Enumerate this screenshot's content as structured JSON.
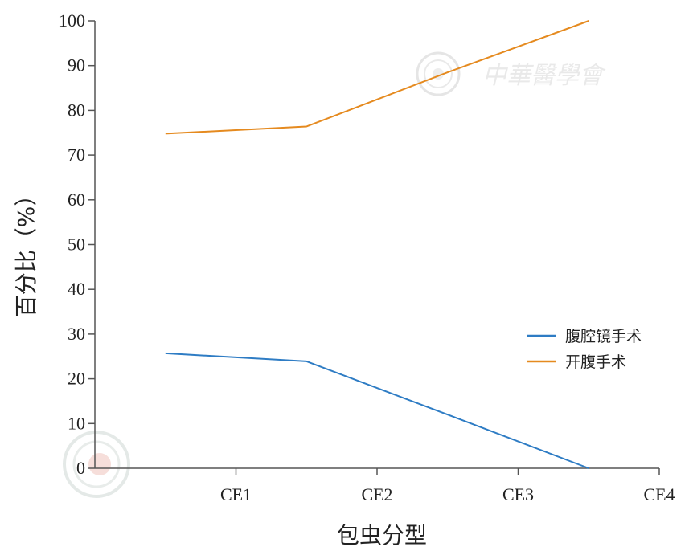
{
  "chart_data": {
    "type": "line",
    "xlabel": "包虫分型",
    "ylabel": "百分比（%）",
    "categories": [
      "CE1",
      "CE2",
      "CE3",
      "CE4"
    ],
    "ylim": [
      0,
      100
    ],
    "yticks": [
      0,
      10,
      20,
      30,
      40,
      50,
      60,
      70,
      80,
      90,
      100
    ],
    "grid": false,
    "legend_position": "right",
    "series": [
      {
        "name": "腹腔镜手术",
        "color": "#2e7cc4",
        "x": [
          0.5,
          1.5,
          2.5,
          3.5
        ],
        "values": [
          25.7,
          23.9,
          12.0,
          0.0
        ]
      },
      {
        "name": "开腹手术",
        "color": "#e58a1f",
        "x": [
          0.5,
          1.5,
          2.5,
          3.5
        ],
        "values": [
          74.8,
          76.4,
          88.5,
          100.0
        ]
      }
    ]
  },
  "watermark": {
    "text": "中華醫學會"
  }
}
